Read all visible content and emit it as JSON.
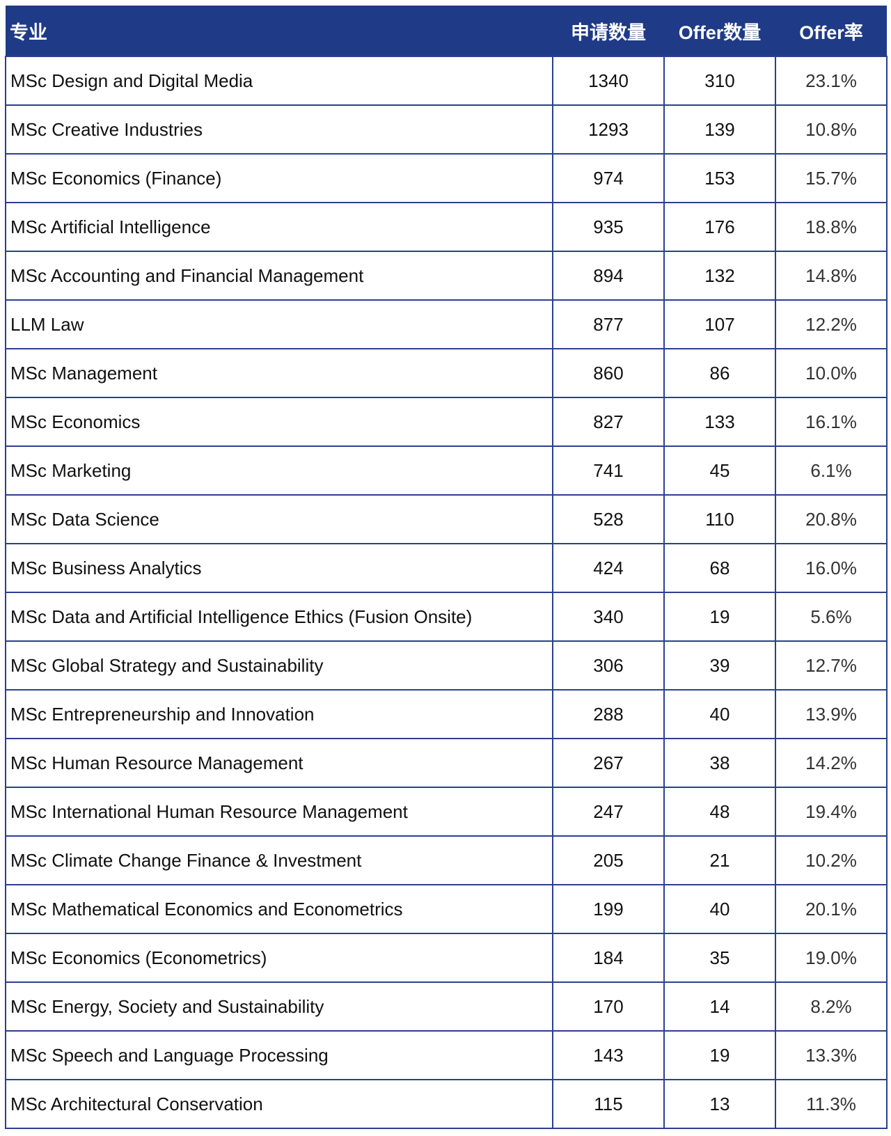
{
  "headers": [
    "专业",
    "申请数量",
    "Offer数量",
    "Offer率"
  ],
  "colors": {
    "header_bg": "#1f3b87",
    "border": "#2a3f8e"
  },
  "rows": [
    [
      "MSc Design and Digital Media",
      "1340",
      "310",
      "23.1%"
    ],
    [
      "MSc Creative Industries",
      "1293",
      "139",
      "10.8%"
    ],
    [
      "MSc Economics (Finance)",
      "974",
      "153",
      "15.7%"
    ],
    [
      "MSc Artificial Intelligence",
      "935",
      "176",
      "18.8%"
    ],
    [
      "MSc Accounting and Financial Management",
      "894",
      "132",
      "14.8%"
    ],
    [
      "LLM Law",
      "877",
      "107",
      "12.2%"
    ],
    [
      "MSc Management",
      "860",
      "86",
      "10.0%"
    ],
    [
      "MSc Economics",
      "827",
      "133",
      "16.1%"
    ],
    [
      "MSc Marketing",
      "741",
      "45",
      "6.1%"
    ],
    [
      "MSc Data Science",
      "528",
      "110",
      "20.8%"
    ],
    [
      "MSc Business Analytics",
      "424",
      "68",
      "16.0%"
    ],
    [
      "MSc Data and Artificial Intelligence Ethics (Fusion Onsite)",
      "340",
      "19",
      "5.6%"
    ],
    [
      "MSc Global Strategy and Sustainability",
      "306",
      "39",
      "12.7%"
    ],
    [
      "MSc Entrepreneurship and Innovation",
      "288",
      "40",
      "13.9%"
    ],
    [
      "MSc Human Resource Management",
      "267",
      "38",
      "14.2%"
    ],
    [
      "MSc International Human Resource Management",
      "247",
      "48",
      "19.4%"
    ],
    [
      "MSc Climate Change Finance & Investment",
      "205",
      "21",
      "10.2%"
    ],
    [
      "MSc Mathematical Economics and Econometrics",
      "199",
      "40",
      "20.1%"
    ],
    [
      "MSc Economics (Econometrics)",
      "184",
      "35",
      "19.0%"
    ],
    [
      "MSc Energy, Society and Sustainability",
      "170",
      "14",
      "8.2%"
    ],
    [
      "MSc Speech and Language Processing",
      "143",
      "19",
      "13.3%"
    ],
    [
      "MSc Architectural Conservation",
      "115",
      "13",
      "11.3%"
    ]
  ]
}
